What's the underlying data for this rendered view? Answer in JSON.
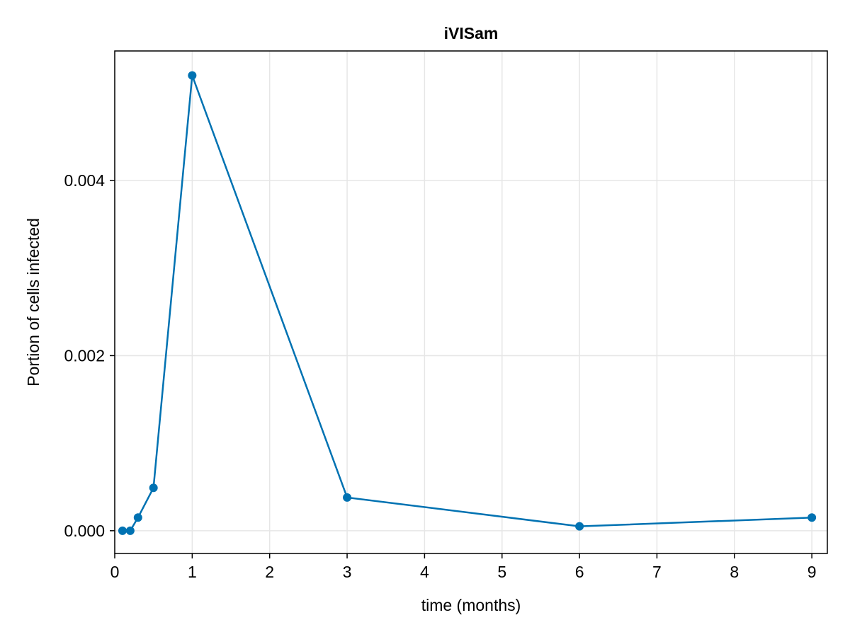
{
  "chart_data": {
    "type": "line",
    "title": "iVISam",
    "xlabel": "time (months)",
    "ylabel": "Portion of cells infected",
    "xlim": [
      0,
      9.2
    ],
    "ylim": [
      -0.00026,
      0.00548
    ],
    "xticks": [
      0,
      1,
      2,
      3,
      4,
      5,
      6,
      7,
      8,
      9
    ],
    "xtick_labels": [
      "0",
      "1",
      "2",
      "3",
      "4",
      "5",
      "6",
      "7",
      "8",
      "9"
    ],
    "yticks": [
      0.0,
      0.002,
      0.004
    ],
    "ytick_labels": [
      "0.000",
      "0.002",
      "0.004"
    ],
    "grid": true,
    "legend": false,
    "series": [
      {
        "color": "#0072b2",
        "marker": "circle",
        "x": [
          0.1,
          0.2,
          0.3,
          0.5,
          1,
          3,
          6,
          9
        ],
        "y": [
          0.0,
          0.0,
          0.00015,
          0.00049,
          0.0052,
          0.00038,
          5e-05,
          0.00015
        ]
      }
    ]
  },
  "colors": {
    "series": "#0072b2",
    "grid": "#e6e6e6",
    "axis": "#000000"
  }
}
